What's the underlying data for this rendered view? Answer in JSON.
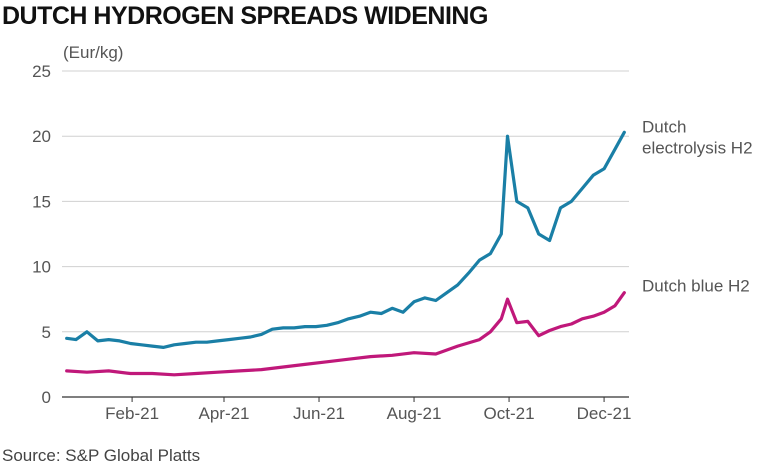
{
  "title": "DUTCH HYDROGEN SPREADS WIDENING",
  "source": "Source: S&P Global Platts",
  "chart_data": {
    "type": "line",
    "title": "DUTCH HYDROGEN SPREADS WIDENING",
    "ylabel": "(Eur/kg)",
    "xlabel": "",
    "ylim": [
      0,
      25
    ],
    "yticks": [
      0,
      5,
      10,
      15,
      20,
      25
    ],
    "xticks": [
      "Feb-21",
      "Apr-21",
      "Jun-21",
      "Aug-21",
      "Oct-21",
      "Dec-21"
    ],
    "grid": true,
    "legend": "direct labels at right end of lines",
    "series": [
      {
        "name": "Dutch electrolysis H2",
        "color": "#1a7fa6",
        "x": [
          "2021-01-04",
          "2021-01-10",
          "2021-01-17",
          "2021-01-24",
          "2021-01-31",
          "2021-02-07",
          "2021-02-14",
          "2021-02-21",
          "2021-02-28",
          "2021-03-07",
          "2021-03-14",
          "2021-03-21",
          "2021-03-28",
          "2021-04-04",
          "2021-04-11",
          "2021-04-18",
          "2021-04-25",
          "2021-05-02",
          "2021-05-09",
          "2021-05-16",
          "2021-05-23",
          "2021-05-30",
          "2021-06-06",
          "2021-06-13",
          "2021-06-20",
          "2021-06-27",
          "2021-07-04",
          "2021-07-11",
          "2021-07-18",
          "2021-07-25",
          "2021-08-01",
          "2021-08-08",
          "2021-08-15",
          "2021-08-22",
          "2021-08-29",
          "2021-09-05",
          "2021-09-12",
          "2021-09-19",
          "2021-09-26",
          "2021-10-03",
          "2021-10-10",
          "2021-10-14",
          "2021-10-20",
          "2021-10-27",
          "2021-11-03",
          "2021-11-10",
          "2021-11-17",
          "2021-11-24",
          "2021-12-01",
          "2021-12-08",
          "2021-12-15",
          "2021-12-22",
          "2021-12-28"
        ],
        "values": [
          4.5,
          4.4,
          5.0,
          4.3,
          4.4,
          4.3,
          4.1,
          4.0,
          3.9,
          3.8,
          4.0,
          4.1,
          4.2,
          4.2,
          4.3,
          4.4,
          4.5,
          4.6,
          4.8,
          5.2,
          5.3,
          5.3,
          5.4,
          5.4,
          5.5,
          5.7,
          6.0,
          6.2,
          6.5,
          6.4,
          6.8,
          6.5,
          7.3,
          7.6,
          7.4,
          8.0,
          8.6,
          9.5,
          10.5,
          11.0,
          12.5,
          20.0,
          15.0,
          14.5,
          12.5,
          12.0,
          14.5,
          15.0,
          16.0,
          17.0,
          17.5,
          19.0,
          20.3
        ]
      },
      {
        "name": "Dutch blue H2",
        "color": "#c0187a",
        "x": [
          "2021-01-04",
          "2021-01-17",
          "2021-01-31",
          "2021-02-14",
          "2021-02-28",
          "2021-03-14",
          "2021-03-28",
          "2021-04-11",
          "2021-04-25",
          "2021-05-09",
          "2021-05-23",
          "2021-06-06",
          "2021-06-20",
          "2021-07-04",
          "2021-07-18",
          "2021-08-01",
          "2021-08-15",
          "2021-08-29",
          "2021-09-12",
          "2021-09-26",
          "2021-10-03",
          "2021-10-10",
          "2021-10-14",
          "2021-10-20",
          "2021-10-27",
          "2021-11-03",
          "2021-11-10",
          "2021-11-17",
          "2021-11-24",
          "2021-12-01",
          "2021-12-08",
          "2021-12-15",
          "2021-12-22",
          "2021-12-28"
        ],
        "values": [
          2.0,
          1.9,
          2.0,
          1.8,
          1.8,
          1.7,
          1.8,
          1.9,
          2.0,
          2.1,
          2.3,
          2.5,
          2.7,
          2.9,
          3.1,
          3.2,
          3.4,
          3.3,
          3.9,
          4.4,
          5.0,
          6.0,
          7.5,
          5.7,
          5.8,
          4.7,
          5.1,
          5.4,
          5.6,
          6.0,
          6.2,
          6.5,
          7.0,
          8.0
        ]
      }
    ]
  }
}
